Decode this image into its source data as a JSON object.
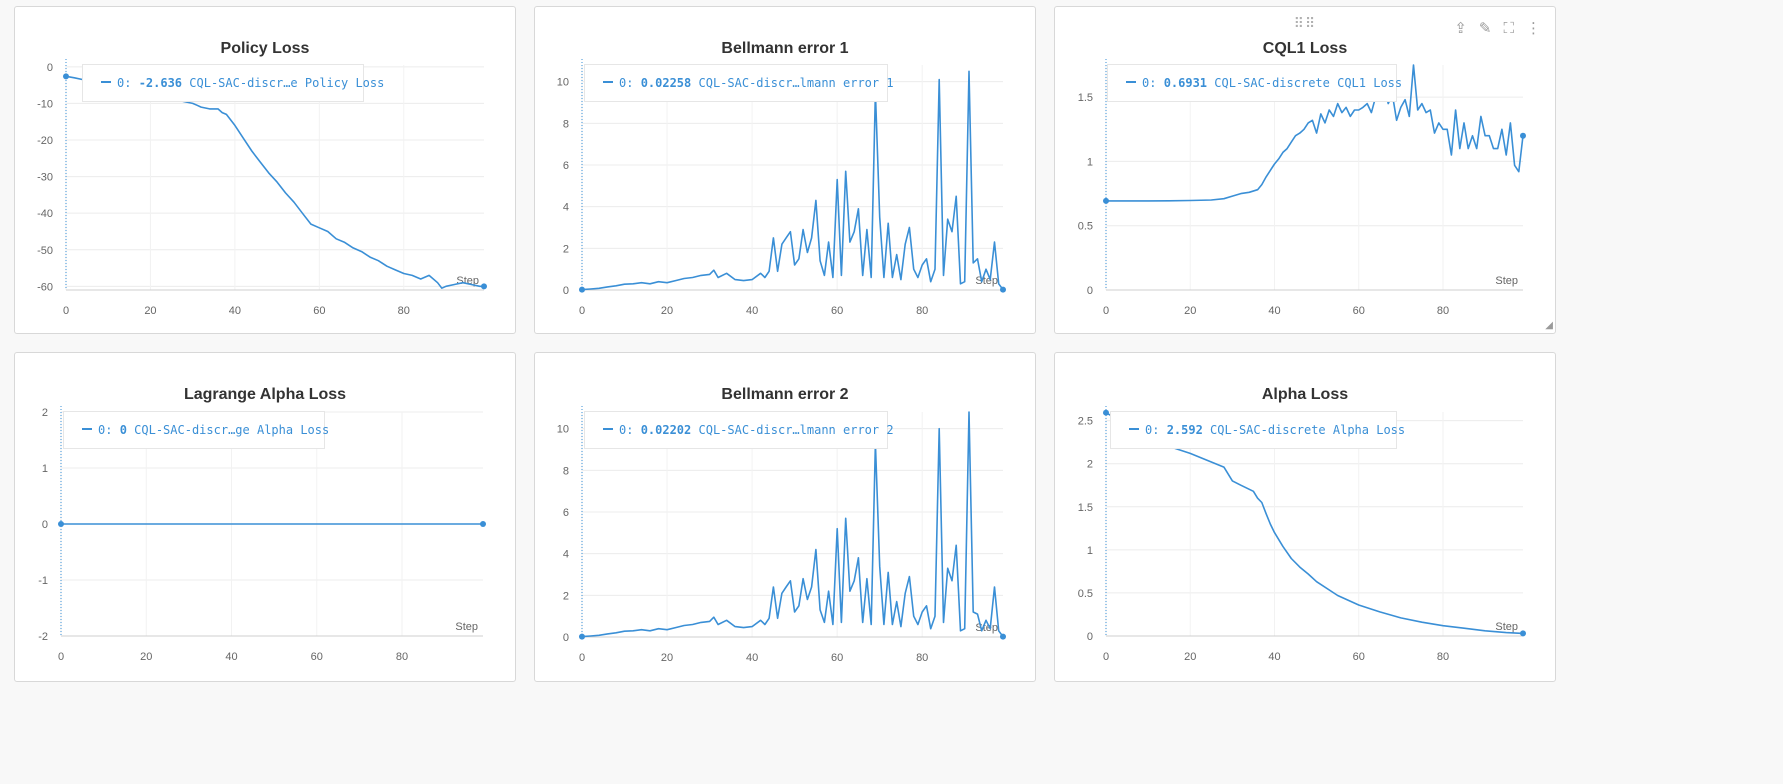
{
  "series_color": "#3a8fd6",
  "toolbar": {
    "drag_icon": "drag-dots-icon",
    "share_icon": "share-icon",
    "edit_icon": "pencil-icon",
    "fullscreen_icon": "fullscreen-icon",
    "menu_icon": "more-vertical-icon",
    "resize_icon": "resize-corner-icon"
  },
  "panels": [
    {
      "title": "Policy Loss",
      "legend": {
        "prefix": "0:",
        "value": "-2.636",
        "name": "CQL-SAC-discr…e Policy Loss"
      },
      "chart_data": {
        "type": "line",
        "title": "Policy Loss",
        "xlabel": "Step",
        "ylabel": "",
        "xlim": [
          0,
          99
        ],
        "ylim": [
          -61,
          0.5
        ],
        "xticks": [
          0,
          20,
          40,
          60,
          80
        ],
        "yticks": [
          0,
          -10,
          -20,
          -30,
          -40,
          -50,
          -60
        ],
        "grid": true,
        "series": [
          {
            "name": "CQL-SAC-discr…e Policy Loss",
            "x": [
              0,
              2,
              4,
              6,
              8,
              10,
              12,
              14,
              16,
              18,
              20,
              22,
              24,
              26,
              28,
              30,
              31,
              32,
              34,
              36,
              37,
              38,
              40,
              42,
              44,
              46,
              48,
              50,
              52,
              54,
              56,
              58,
              60,
              62,
              64,
              66,
              68,
              70,
              72,
              74,
              76,
              78,
              80,
              82,
              84,
              86,
              88,
              89,
              90,
              92,
              94,
              96,
              98,
              99
            ],
            "y": [
              -2.6,
              -3,
              -3.5,
              -4,
              -4.5,
              -5,
              -5.5,
              -6,
              -6.5,
              -7,
              -7.5,
              -8,
              -8.5,
              -9,
              -9.5,
              -10,
              -10.5,
              -11,
              -11.5,
              -11.5,
              -12.5,
              -13,
              -16,
              -19.5,
              -23,
              -26,
              -29,
              -31.5,
              -34.5,
              -37,
              -40,
              -43,
              -44,
              -45,
              -47,
              -48,
              -49.5,
              -50.5,
              -52,
              -53,
              -54.5,
              -55.5,
              -56.5,
              -57,
              -58,
              -57,
              -59,
              -60.5,
              -60,
              -59.5,
              -59,
              -59.5,
              -60,
              -60
            ]
          }
        ]
      }
    },
    {
      "title": "Bellmann error 1",
      "legend": {
        "prefix": "0:",
        "value": "0.02258",
        "name": "CQL-SAC-discr…lmann error 1"
      },
      "chart_data": {
        "type": "line",
        "title": "Bellmann error 1",
        "xlabel": "Step",
        "ylabel": "",
        "xlim": [
          0,
          99
        ],
        "ylim": [
          0,
          10.8
        ],
        "xticks": [
          0,
          20,
          40,
          60,
          80
        ],
        "yticks": [
          0,
          2,
          4,
          6,
          8,
          10
        ],
        "grid": true,
        "series": [
          {
            "name": "CQL-SAC-discr…lmann error 1",
            "x": [
              0,
              2,
              4,
              6,
              8,
              10,
              12,
              14,
              16,
              18,
              20,
              22,
              24,
              26,
              28,
              30,
              31,
              32,
              34,
              36,
              38,
              40,
              42,
              43,
              44,
              45,
              46,
              47,
              48,
              49,
              50,
              51,
              52,
              53,
              54,
              55,
              56,
              57,
              58,
              59,
              60,
              61,
              62,
              63,
              64,
              65,
              66,
              67,
              68,
              69,
              70,
              71,
              72,
              73,
              74,
              75,
              76,
              77,
              78,
              79,
              80,
              81,
              82,
              83,
              84,
              85,
              86,
              87,
              88,
              89,
              90,
              91,
              92,
              93,
              94,
              95,
              96,
              97,
              98,
              99
            ],
            "y": [
              0.02,
              0.05,
              0.08,
              0.15,
              0.2,
              0.28,
              0.3,
              0.35,
              0.3,
              0.4,
              0.35,
              0.45,
              0.55,
              0.6,
              0.7,
              0.75,
              0.95,
              0.6,
              0.8,
              0.5,
              0.45,
              0.5,
              0.8,
              0.6,
              0.9,
              2.5,
              0.9,
              2.2,
              2.5,
              2.8,
              1.2,
              1.5,
              2.9,
              1.8,
              2.5,
              4.3,
              1.4,
              0.7,
              2.3,
              0.6,
              5.3,
              0.7,
              5.7,
              2.3,
              2.8,
              3.9,
              0.7,
              2.9,
              0.6,
              9.5,
              3.5,
              0.6,
              3.2,
              0.6,
              1.7,
              0.5,
              2.2,
              3,
              1,
              0.6,
              1.2,
              1.5,
              0.4,
              1,
              10.1,
              0.7,
              3.4,
              2.8,
              4.5,
              0.3,
              0.4,
              10.5,
              1.3,
              1.5,
              0.4,
              1,
              0.5,
              2.3,
              0.3,
              0.02
            ]
          }
        ]
      }
    },
    {
      "title": "CQL1 Loss",
      "legend": {
        "prefix": "0:",
        "value": "0.6931",
        "name": "CQL-SAC-discrete CQL1 Loss"
      },
      "chart_data": {
        "type": "line",
        "title": "CQL1 Loss",
        "xlabel": "Step",
        "ylabel": "",
        "xlim": [
          0,
          99
        ],
        "ylim": [
          0,
          1.75
        ],
        "xticks": [
          0,
          20,
          40,
          60,
          80
        ],
        "yticks": [
          0,
          0.5,
          1,
          1.5
        ],
        "grid": true,
        "series": [
          {
            "name": "CQL-SAC-discrete CQL1 Loss",
            "x": [
              0,
              5,
              10,
              15,
              20,
              25,
              28,
              30,
              32,
              34,
              36,
              37,
              38,
              39,
              40,
              41,
              42,
              43,
              44,
              45,
              46,
              47,
              48,
              49,
              50,
              51,
              52,
              53,
              54,
              55,
              56,
              57,
              58,
              59,
              60,
              61,
              62,
              63,
              64,
              65,
              66,
              67,
              68,
              69,
              70,
              71,
              72,
              73,
              74,
              75,
              76,
              77,
              78,
              79,
              80,
              81,
              82,
              83,
              84,
              85,
              86,
              87,
              88,
              89,
              90,
              91,
              92,
              93,
              94,
              95,
              96,
              97,
              98,
              99
            ],
            "y": [
              0.693,
              0.693,
              0.693,
              0.694,
              0.696,
              0.7,
              0.71,
              0.73,
              0.75,
              0.76,
              0.78,
              0.82,
              0.88,
              0.93,
              0.98,
              1.02,
              1.07,
              1.1,
              1.15,
              1.2,
              1.22,
              1.25,
              1.3,
              1.32,
              1.22,
              1.37,
              1.3,
              1.4,
              1.35,
              1.45,
              1.38,
              1.42,
              1.35,
              1.4,
              1.4,
              1.42,
              1.45,
              1.38,
              1.5,
              1.48,
              1.6,
              1.45,
              1.52,
              1.32,
              1.42,
              1.48,
              1.35,
              1.75,
              1.4,
              1.45,
              1.38,
              1.4,
              1.22,
              1.3,
              1.25,
              1.25,
              1.05,
              1.4,
              1.1,
              1.3,
              1.1,
              1.2,
              1.1,
              1.35,
              1.2,
              1.2,
              1.1,
              1.1,
              1.25,
              1.05,
              1.3,
              0.97,
              0.92,
              1.2
            ]
          }
        ]
      }
    },
    {
      "title": "Lagrange Alpha Loss",
      "legend": {
        "prefix": "0:",
        "value": "0",
        "name": "CQL-SAC-discr…ge Alpha Loss"
      },
      "chart_data": {
        "type": "line",
        "title": "Lagrange Alpha Loss",
        "xlabel": "Step",
        "ylabel": "",
        "xlim": [
          0,
          99
        ],
        "ylim": [
          -2,
          2
        ],
        "xticks": [
          0,
          20,
          40,
          60,
          80
        ],
        "yticks": [
          2,
          1,
          0,
          -1,
          -2
        ],
        "grid": true,
        "series": [
          {
            "name": "CQL-SAC-discr…ge Alpha Loss",
            "x": [
              0,
              99
            ],
            "y": [
              0,
              0
            ]
          }
        ]
      }
    },
    {
      "title": "Bellmann error 2",
      "legend": {
        "prefix": "0:",
        "value": "0.02202",
        "name": "CQL-SAC-discr…lmann error 2"
      },
      "chart_data": {
        "type": "line",
        "title": "Bellmann error 2",
        "xlabel": "Step",
        "ylabel": "",
        "xlim": [
          0,
          99
        ],
        "ylim": [
          0,
          10.8
        ],
        "xticks": [
          0,
          20,
          40,
          60,
          80
        ],
        "yticks": [
          0,
          2,
          4,
          6,
          8,
          10
        ],
        "grid": true,
        "series": [
          {
            "name": "CQL-SAC-discr…lmann error 2",
            "x": [
              0,
              2,
              4,
              6,
              8,
              10,
              12,
              14,
              16,
              18,
              20,
              22,
              24,
              26,
              28,
              30,
              31,
              32,
              34,
              36,
              38,
              40,
              42,
              43,
              44,
              45,
              46,
              47,
              48,
              49,
              50,
              51,
              52,
              53,
              54,
              55,
              56,
              57,
              58,
              59,
              60,
              61,
              62,
              63,
              64,
              65,
              66,
              67,
              68,
              69,
              70,
              71,
              72,
              73,
              74,
              75,
              76,
              77,
              78,
              79,
              80,
              81,
              82,
              83,
              84,
              85,
              86,
              87,
              88,
              89,
              90,
              91,
              92,
              93,
              94,
              95,
              96,
              97,
              98,
              99
            ],
            "y": [
              0.02,
              0.05,
              0.08,
              0.15,
              0.2,
              0.28,
              0.3,
              0.35,
              0.3,
              0.4,
              0.35,
              0.45,
              0.55,
              0.6,
              0.7,
              0.75,
              0.95,
              0.6,
              0.8,
              0.5,
              0.45,
              0.5,
              0.8,
              0.6,
              0.9,
              2.4,
              0.9,
              2.1,
              2.4,
              2.7,
              1.2,
              1.5,
              2.8,
              1.8,
              2.4,
              4.2,
              1.3,
              0.7,
              2.2,
              0.6,
              5.2,
              0.7,
              5.7,
              2.2,
              2.7,
              3.8,
              0.7,
              2.8,
              0.6,
              9.3,
              3.4,
              0.6,
              3.1,
              0.6,
              1.7,
              0.5,
              2.1,
              2.9,
              1,
              0.6,
              1.2,
              1.5,
              0.4,
              1,
              10,
              0.7,
              3.3,
              2.7,
              4.4,
              0.3,
              0.4,
              10.8,
              1.2,
              1.1,
              0.3,
              0.8,
              0.4,
              2.4,
              0.3,
              0.02
            ]
          }
        ]
      }
    },
    {
      "title": "Alpha Loss",
      "legend": {
        "prefix": "0:",
        "value": "2.592",
        "name": "CQL-SAC-discrete Alpha Loss"
      },
      "chart_data": {
        "type": "line",
        "title": "Alpha Loss",
        "xlabel": "Step",
        "ylabel": "",
        "xlim": [
          0,
          99
        ],
        "ylim": [
          0,
          2.6
        ],
        "xticks": [
          0,
          20,
          40,
          60,
          80
        ],
        "yticks": [
          0,
          0.5,
          1,
          1.5,
          2,
          2.5
        ],
        "grid": true,
        "series": [
          {
            "name": "CQL-SAC-discrete Alpha Loss",
            "x": [
              0,
              5,
              10,
              15,
              20,
              25,
              28,
              30,
              32,
              35,
              36,
              37,
              38,
              39,
              40,
              42,
              44,
              46,
              48,
              50,
              55,
              60,
              65,
              70,
              75,
              80,
              85,
              90,
              95,
              99
            ],
            "y": [
              2.592,
              2.45,
              2.3,
              2.2,
              2.12,
              2.02,
              1.96,
              1.8,
              1.75,
              1.68,
              1.6,
              1.55,
              1.42,
              1.3,
              1.2,
              1.04,
              0.9,
              0.8,
              0.72,
              0.63,
              0.47,
              0.36,
              0.28,
              0.21,
              0.16,
              0.12,
              0.09,
              0.06,
              0.04,
              0.03
            ]
          }
        ]
      }
    }
  ]
}
